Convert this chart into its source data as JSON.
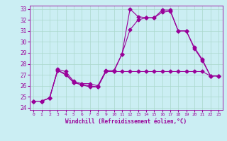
{
  "xlabel": "Windchill (Refroidissement éolien,°C)",
  "bg_color": "#cbeef3",
  "grid_color": "#aad8cc",
  "line_color": "#990099",
  "line1": [
    24.6,
    24.6,
    24.9,
    27.4,
    27.0,
    26.3,
    26.1,
    26.0,
    25.9,
    27.3,
    27.3,
    28.9,
    31.1,
    32.0,
    32.2,
    32.2,
    32.9,
    32.9,
    31.0,
    31.0,
    29.4,
    28.3,
    26.9,
    26.9
  ],
  "line2": [
    24.6,
    24.6,
    24.9,
    27.5,
    27.3,
    26.4,
    26.2,
    26.2,
    26.0,
    27.4,
    27.4,
    28.9,
    33.0,
    32.3,
    32.2,
    32.2,
    32.7,
    32.8,
    31.0,
    31.0,
    29.5,
    28.4,
    26.9,
    26.9
  ],
  "line3": [
    24.6,
    24.6,
    24.9,
    27.4,
    27.1,
    26.3,
    26.1,
    25.9,
    25.9,
    27.3,
    27.3,
    27.3,
    27.3,
    27.3,
    27.3,
    27.3,
    27.3,
    27.3,
    27.3,
    27.3,
    27.3,
    27.3,
    26.9,
    26.9
  ],
  "x": [
    0,
    1,
    2,
    3,
    4,
    5,
    6,
    7,
    8,
    9,
    10,
    11,
    12,
    13,
    14,
    15,
    16,
    17,
    18,
    19,
    20,
    21,
    22,
    23
  ],
  "xlim": [
    -0.5,
    23.5
  ],
  "ylim": [
    23.8,
    33.3
  ],
  "yticks": [
    24,
    25,
    26,
    27,
    28,
    29,
    30,
    31,
    32,
    33
  ],
  "xtick_labels": [
    "0",
    "1",
    "2",
    "3",
    "4",
    "5",
    "6",
    "7",
    "8",
    "9",
    "10",
    "11",
    "12",
    "13",
    "14",
    "15",
    "16",
    "17",
    "18",
    "19",
    "20",
    "21",
    "22",
    "23"
  ]
}
